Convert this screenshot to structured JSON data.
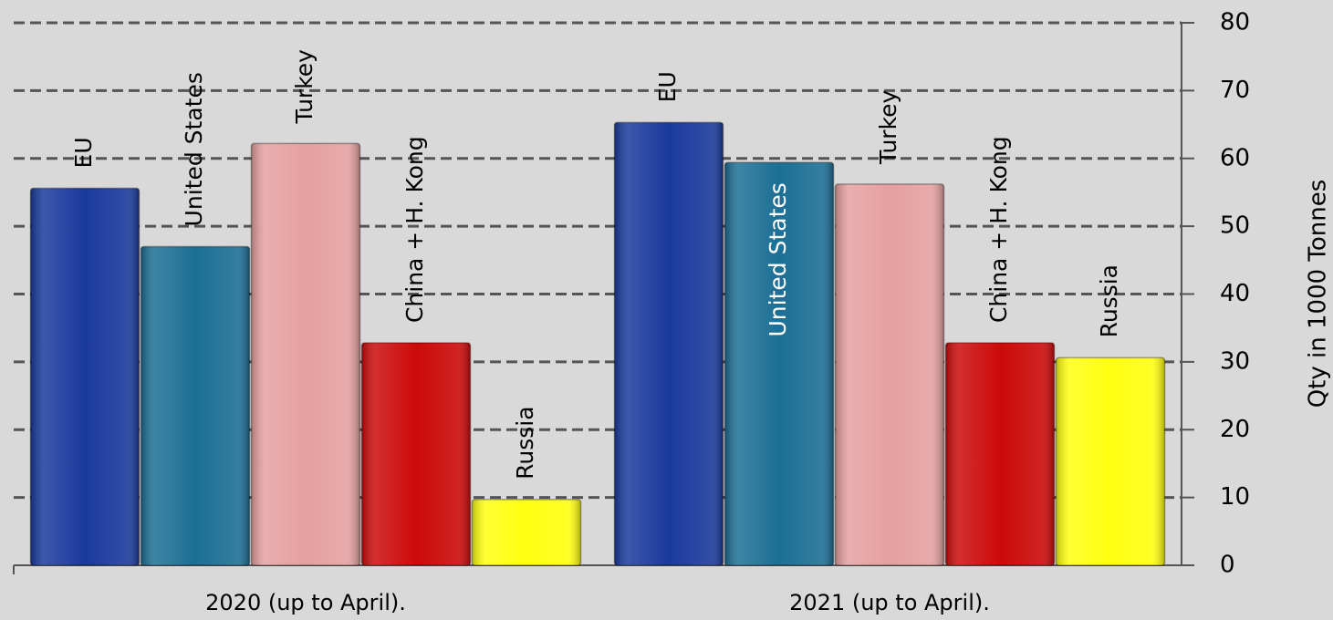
{
  "chart_data": {
    "type": "bar",
    "y_label": "Qty in 1000 Tonnes",
    "categories": [
      "2020 (up to April).",
      "2021 (up to April)."
    ],
    "series": [
      {
        "name": "EU",
        "color": "#1a3a9c",
        "values": [
          55.6,
          65.3
        ]
      },
      {
        "name": "United States",
        "color": "#1c6f95",
        "values": [
          47.0,
          59.4
        ]
      },
      {
        "name": "Turkey",
        "color": "#e5a0a0",
        "values": [
          62.2,
          56.2
        ]
      },
      {
        "name": "China + H. Kong",
        "color": "#cc0a0a",
        "values": [
          32.8,
          32.8
        ]
      },
      {
        "name": "Russia",
        "color": "#ffff10",
        "values": [
          9.7,
          30.6
        ]
      }
    ],
    "ylim": [
      0,
      80
    ],
    "yticks": [
      0,
      10,
      20,
      30,
      40,
      50,
      60,
      70,
      80
    ],
    "grid": true
  }
}
